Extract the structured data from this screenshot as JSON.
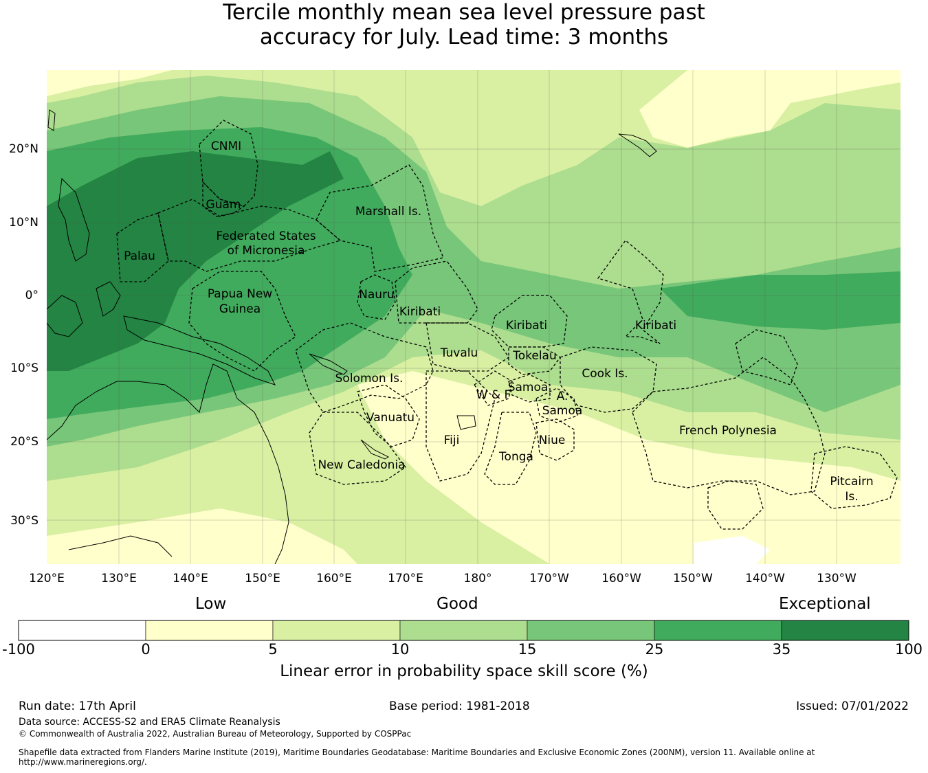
{
  "title": {
    "line1": "Tercile monthly mean sea level pressure past",
    "line2": "accuracy for July. Lead time: 3 months"
  },
  "map": {
    "lat_labels": [
      "20°N",
      "10°N",
      "0°",
      "10°S",
      "20°S",
      "30°S"
    ],
    "lon_labels": [
      "120°E",
      "130°E",
      "140°E",
      "150°E",
      "160°E",
      "170°E",
      "180°",
      "170°W",
      "160°W",
      "150°W",
      "140°W",
      "130°W"
    ],
    "regions": [
      {
        "name": "CNMI"
      },
      {
        "name": "Guam"
      },
      {
        "name": "Marshall Is."
      },
      {
        "name": "Federated States"
      },
      {
        "name": "of Micronesia"
      },
      {
        "name": "Palau"
      },
      {
        "name": "Papua New"
      },
      {
        "name": "Guinea"
      },
      {
        "name": "Nauru"
      },
      {
        "name": "Kiribati"
      },
      {
        "name": "Kiribati"
      },
      {
        "name": "Kiribati"
      },
      {
        "name": "Tuvalu"
      },
      {
        "name": "Tokelau"
      },
      {
        "name": "Solomon Is."
      },
      {
        "name": "Cook Is."
      },
      {
        "name": "Samoa"
      },
      {
        "name": "W & F"
      },
      {
        "name": "A."
      },
      {
        "name": "Samoa"
      },
      {
        "name": "Vanuatu"
      },
      {
        "name": "Fiji"
      },
      {
        "name": "Niue"
      },
      {
        "name": "French Polynesia"
      },
      {
        "name": "Tonga"
      },
      {
        "name": "New Caledonia"
      },
      {
        "name": "Pitcairn"
      },
      {
        "name": "Is."
      }
    ],
    "palette": [
      "#ffffff",
      "#ffffcc",
      "#d9f0a3",
      "#addd8e",
      "#78c679",
      "#41ab5d",
      "#238443"
    ]
  },
  "colorbar": {
    "categories": [
      "Low",
      "Good",
      "Exceptional"
    ],
    "ticks": [
      "-100",
      "0",
      "5",
      "10",
      "15",
      "25",
      "35",
      "100"
    ],
    "label": "Linear error in probability space skill score (%)"
  },
  "footer": {
    "run_date": "Run date: 17th April",
    "base_period": "Base period: 1981-2018",
    "issued": "Issued: 07/01/2022",
    "source": "Data source: ACCESS-S2 and ERA5 Climate Reanalysis",
    "copyright": "© Commonwealth of Australia 2022, Australian Bureau of Meteorology, Supported by COSPPac",
    "shapefile1": "Shapefile data extracted from Flanders Marine Institute (2019), Maritime Boundaries Geodatabase: Maritime Boundaries and Exclusive Economic Zones (200NM), version 11. Available online at",
    "shapefile2": "http://www.marineregions.org/."
  }
}
